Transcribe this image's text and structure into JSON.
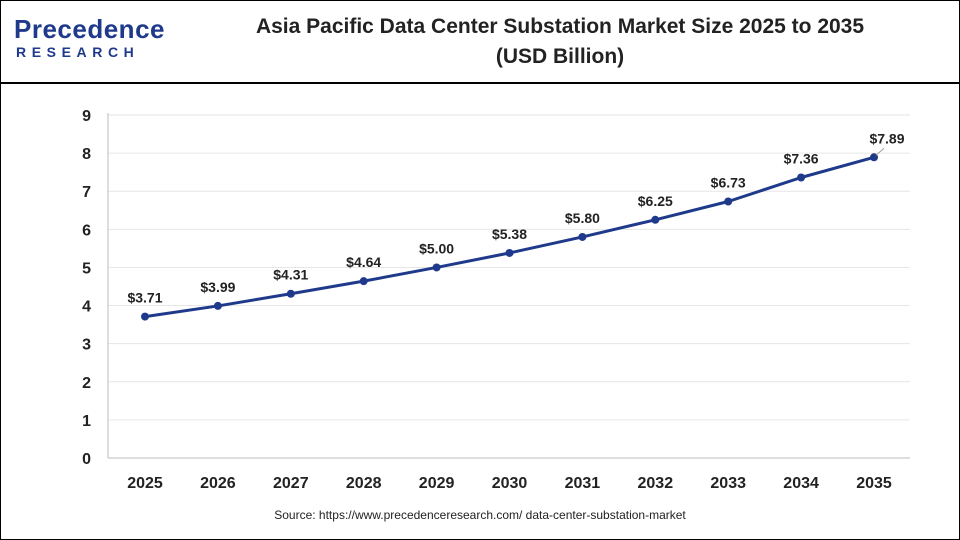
{
  "logo": {
    "line1": "Precedence",
    "line2": "RESEARCH"
  },
  "title_line1": "Asia Pacific Data Center Substation Market Size 2025 to 2035",
  "title_line2": "(USD Billion)",
  "source": "Source: https://www.precedenceresearch.com/ data-center-substation-market",
  "colors": {
    "line": "#1f3a8a",
    "grid": "#e6e6e6",
    "text": "#222222"
  },
  "chart_data": {
    "type": "line",
    "title": "Asia Pacific Data Center Substation Market Size 2025 to 2035 (USD Billion)",
    "categories": [
      "2025",
      "2026",
      "2027",
      "2028",
      "2029",
      "2030",
      "2031",
      "2032",
      "2033",
      "2034",
      "2035"
    ],
    "series": [
      {
        "values": [
          3.71,
          3.99,
          4.31,
          4.64,
          5.0,
          5.38,
          5.8,
          6.25,
          6.73,
          7.36,
          7.89
        ],
        "labels": [
          "$3.71",
          "$3.99",
          "$4.31",
          "$4.64",
          "$5.00",
          "$5.38",
          "$5.80",
          "$6.25",
          "$6.73",
          "$7.36",
          "$7.89"
        ]
      }
    ],
    "ylim": [
      0,
      9
    ],
    "yticks": [
      "0",
      "1",
      "2",
      "3",
      "4",
      "5",
      "6",
      "7",
      "8",
      "9"
    ],
    "grid": true
  }
}
